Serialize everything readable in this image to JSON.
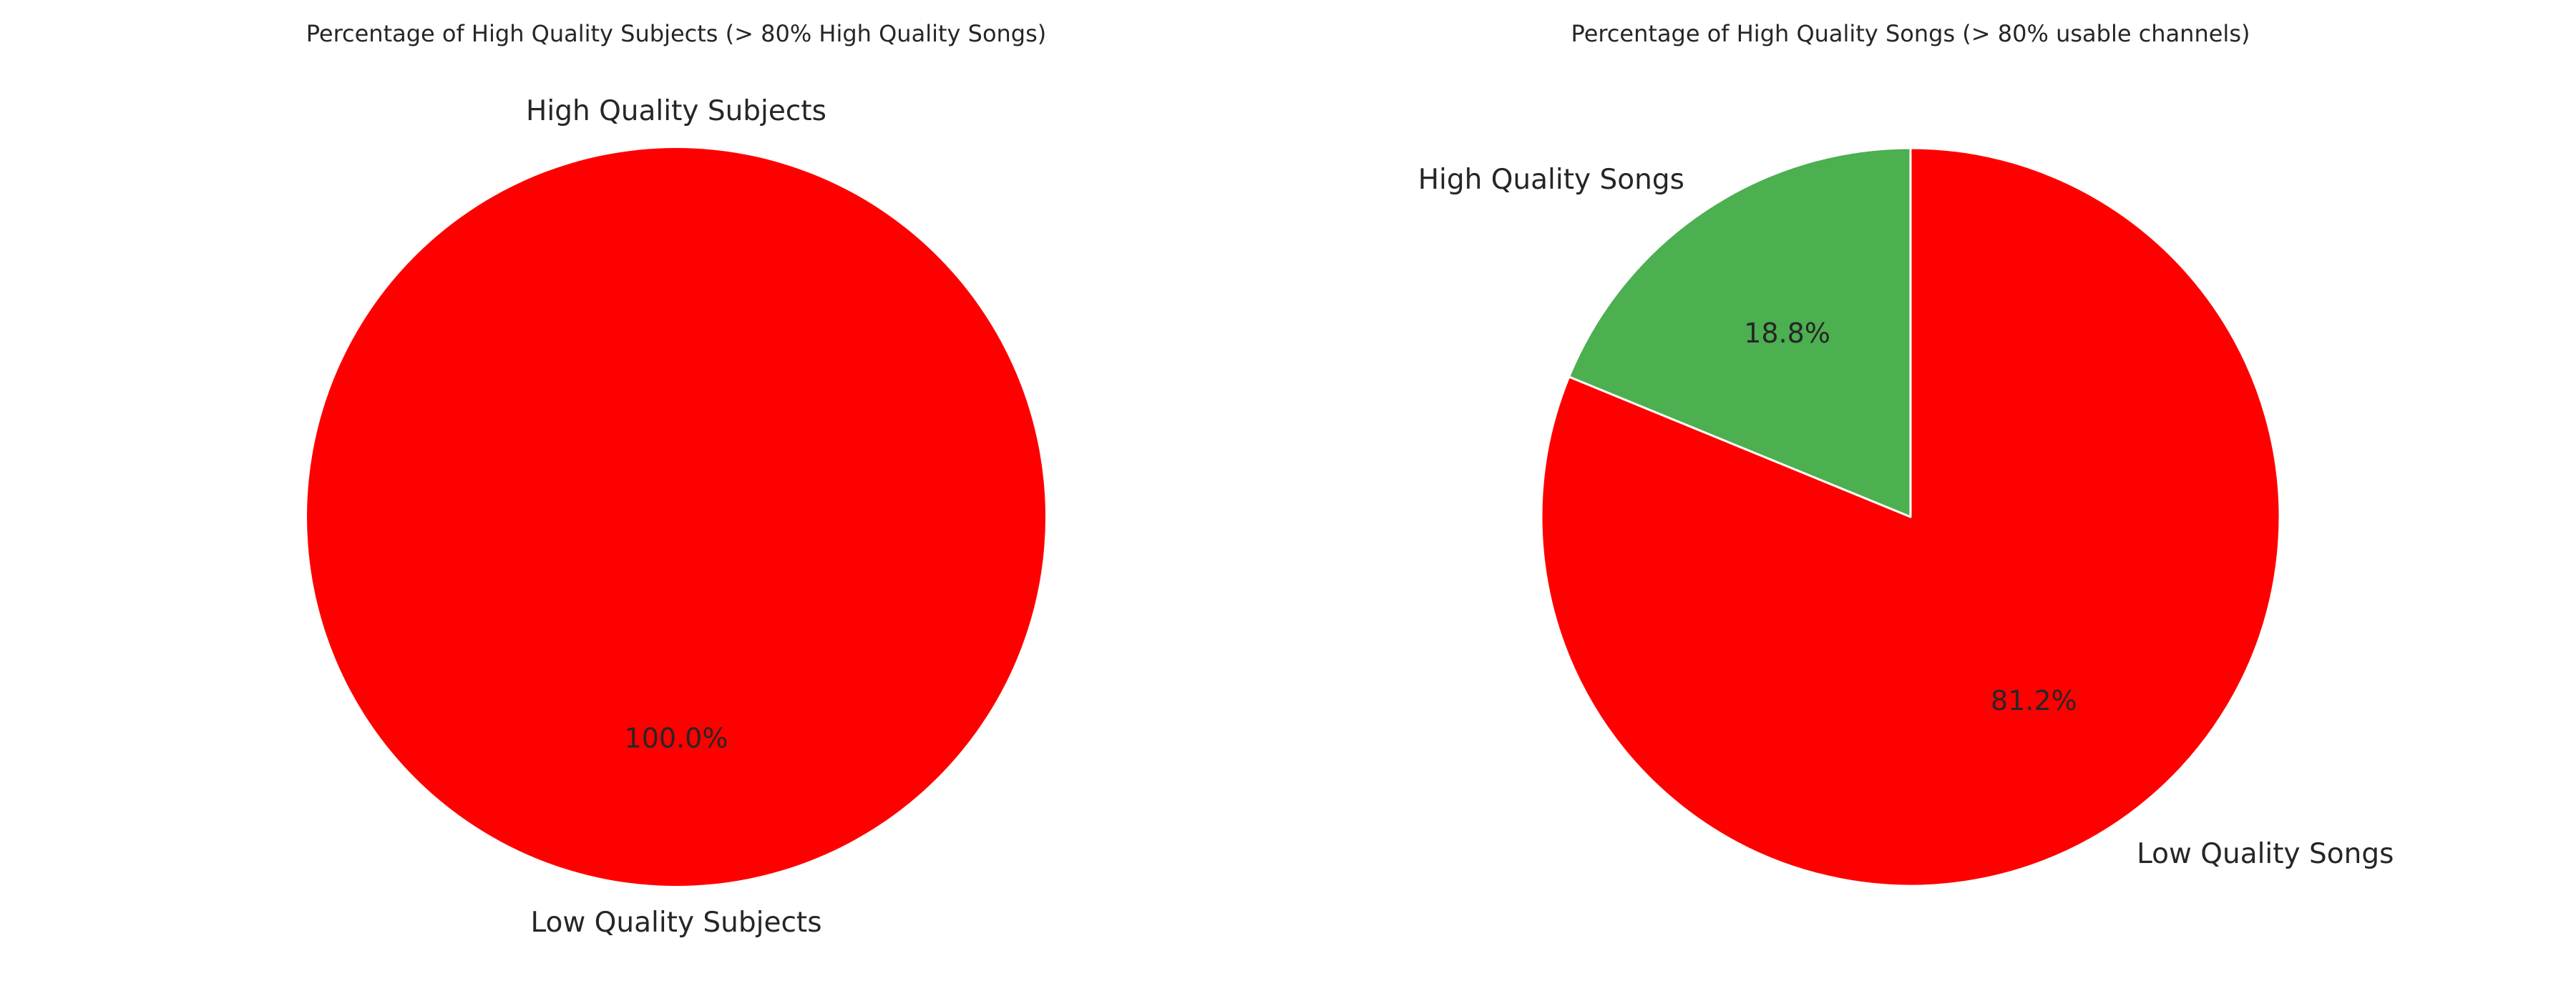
{
  "chart_data": [
    {
      "type": "pie",
      "title": "Percentage of High Quality Subjects (> 80% High Quality Songs)",
      "start_angle_deg": 90,
      "direction": "counterclockwise",
      "slices": [
        {
          "label": "High Quality Subjects",
          "value": 0.0,
          "pct_label": "0.0%",
          "color": "#4caf50"
        },
        {
          "label": "Low Quality Subjects",
          "value": 100.0,
          "pct_label": "100.0%",
          "color": "#ff0000"
        }
      ],
      "legend": "none"
    },
    {
      "type": "pie",
      "title": "Percentage of High Quality Songs (> 80% usable channels)",
      "start_angle_deg": 90,
      "direction": "counterclockwise",
      "slices": [
        {
          "label": "High Quality Songs",
          "value": 18.8,
          "pct_label": "18.8%",
          "color": "#4caf50"
        },
        {
          "label": "Low Quality Songs",
          "value": 81.2,
          "pct_label": "81.2%",
          "color": "#ff0000"
        }
      ],
      "legend": "none"
    }
  ]
}
